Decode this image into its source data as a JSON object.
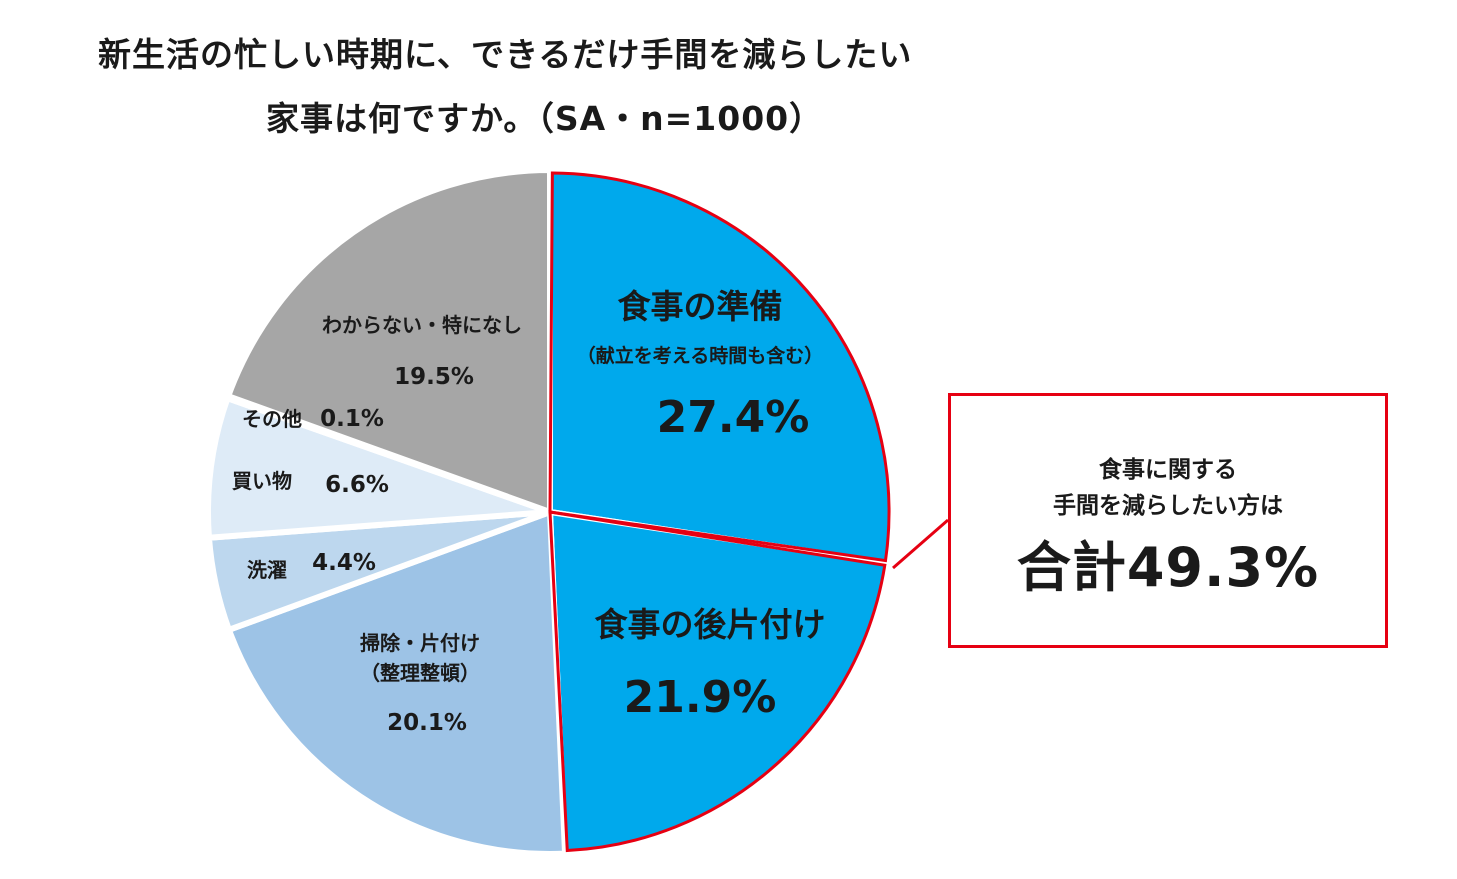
{
  "title": {
    "line1": "新生活の忙しい時期に、できるだけ手間を減らしたい",
    "line2": "家事は何ですか。（SA・n=1000）"
  },
  "chart_data": {
    "type": "pie",
    "slices": [
      {
        "label": "食事の準備",
        "sublabel": "（献立を考える時間も含む）",
        "value": 27.4,
        "value_label": "27.4%",
        "color": "#00a9ec",
        "highlight": true
      },
      {
        "label": "食事の後片付け",
        "value": 21.9,
        "value_label": "21.9%",
        "color": "#00a9ec",
        "highlight": true
      },
      {
        "label": "掃除・片付け",
        "sublabel": "（整理整頓）",
        "value": 20.1,
        "value_label": "20.1%",
        "color": "#9dc3e6"
      },
      {
        "label": "洗濯",
        "value": 4.4,
        "value_label": "4.4%",
        "color": "#bdd7ee"
      },
      {
        "label": "買い物",
        "value": 6.6,
        "value_label": "6.6%",
        "color": "#deebf7"
      },
      {
        "label": "その他",
        "value": 0.1,
        "value_label": "0.1%",
        "color": "#f2f2f2"
      },
      {
        "label": "わからない・特になし",
        "value": 19.5,
        "value_label": "19.5%",
        "color": "#a6a6a6"
      }
    ],
    "highlight_color": "#e60012"
  },
  "callout": {
    "line1": "食事に関する",
    "line2": "手間を減らしたい方は",
    "line3": "合計49.3%"
  }
}
